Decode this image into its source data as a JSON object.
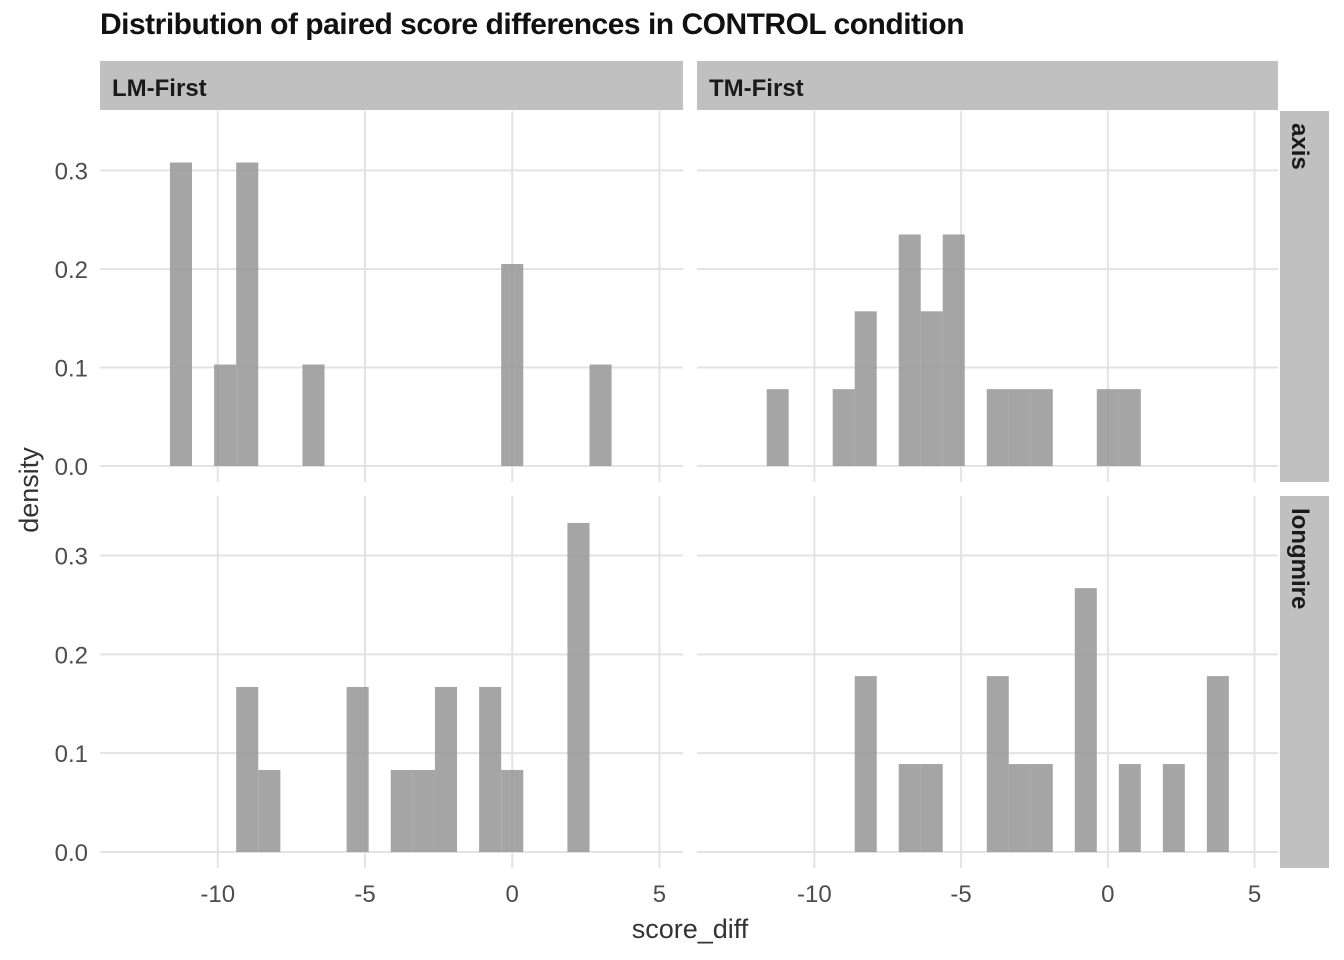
{
  "chart_data": {
    "type": "bar",
    "title": "Distribution of paired score differences in CONTROL condition",
    "xlabel": "score_diff",
    "ylabel": "density",
    "xlim": [
      -14,
      5.8
    ],
    "ylim": [
      0,
      0.34
    ],
    "x_ticks": [
      -10,
      -5,
      0,
      5
    ],
    "y_ticks": [
      0.0,
      0.1,
      0.2,
      0.3
    ],
    "y_tick_labels": [
      "0.0",
      "0.1",
      "0.2",
      "0.3"
    ],
    "bin_width": 0.75,
    "bar_color": "#999999",
    "panel_strip_color": "#c0c0c0",
    "grid": true,
    "columns": [
      "LM-First",
      "TM-First"
    ],
    "rows": [
      "axis",
      "longmire"
    ],
    "panels": [
      {
        "column": "LM-First",
        "row": "axis",
        "bins": [
          {
            "x": -11.25,
            "density": 0.308
          },
          {
            "x": -9.75,
            "density": 0.103
          },
          {
            "x": -9.0,
            "density": 0.308
          },
          {
            "x": -6.75,
            "density": 0.103
          },
          {
            "x": 0.0,
            "density": 0.205
          },
          {
            "x": 3.0,
            "density": 0.103
          }
        ]
      },
      {
        "column": "TM-First",
        "row": "axis",
        "bins": [
          {
            "x": -11.25,
            "density": 0.078
          },
          {
            "x": -9.0,
            "density": 0.078
          },
          {
            "x": -8.25,
            "density": 0.157
          },
          {
            "x": -6.75,
            "density": 0.235
          },
          {
            "x": -6.0,
            "density": 0.157
          },
          {
            "x": -5.25,
            "density": 0.235
          },
          {
            "x": -3.75,
            "density": 0.078
          },
          {
            "x": -3.0,
            "density": 0.078
          },
          {
            "x": -2.25,
            "density": 0.078
          },
          {
            "x": 0.0,
            "density": 0.078
          },
          {
            "x": 0.75,
            "density": 0.078
          }
        ]
      },
      {
        "column": "LM-First",
        "row": "longmire",
        "bins": [
          {
            "x": -9.0,
            "density": 0.167
          },
          {
            "x": -8.25,
            "density": 0.083
          },
          {
            "x": -5.25,
            "density": 0.167
          },
          {
            "x": -3.75,
            "density": 0.083
          },
          {
            "x": -3.0,
            "density": 0.083
          },
          {
            "x": -2.25,
            "density": 0.167
          },
          {
            "x": -0.75,
            "density": 0.167
          },
          {
            "x": 0.0,
            "density": 0.083
          },
          {
            "x": 2.25,
            "density": 0.333
          }
        ]
      },
      {
        "column": "TM-First",
        "row": "longmire",
        "bins": [
          {
            "x": -8.25,
            "density": 0.178
          },
          {
            "x": -6.75,
            "density": 0.089
          },
          {
            "x": -6.0,
            "density": 0.089
          },
          {
            "x": -3.75,
            "density": 0.178
          },
          {
            "x": -3.0,
            "density": 0.089
          },
          {
            "x": -2.25,
            "density": 0.089
          },
          {
            "x": -0.75,
            "density": 0.267
          },
          {
            "x": 0.75,
            "density": 0.089
          },
          {
            "x": 2.25,
            "density": 0.089
          },
          {
            "x": 3.75,
            "density": 0.178
          }
        ]
      }
    ]
  }
}
